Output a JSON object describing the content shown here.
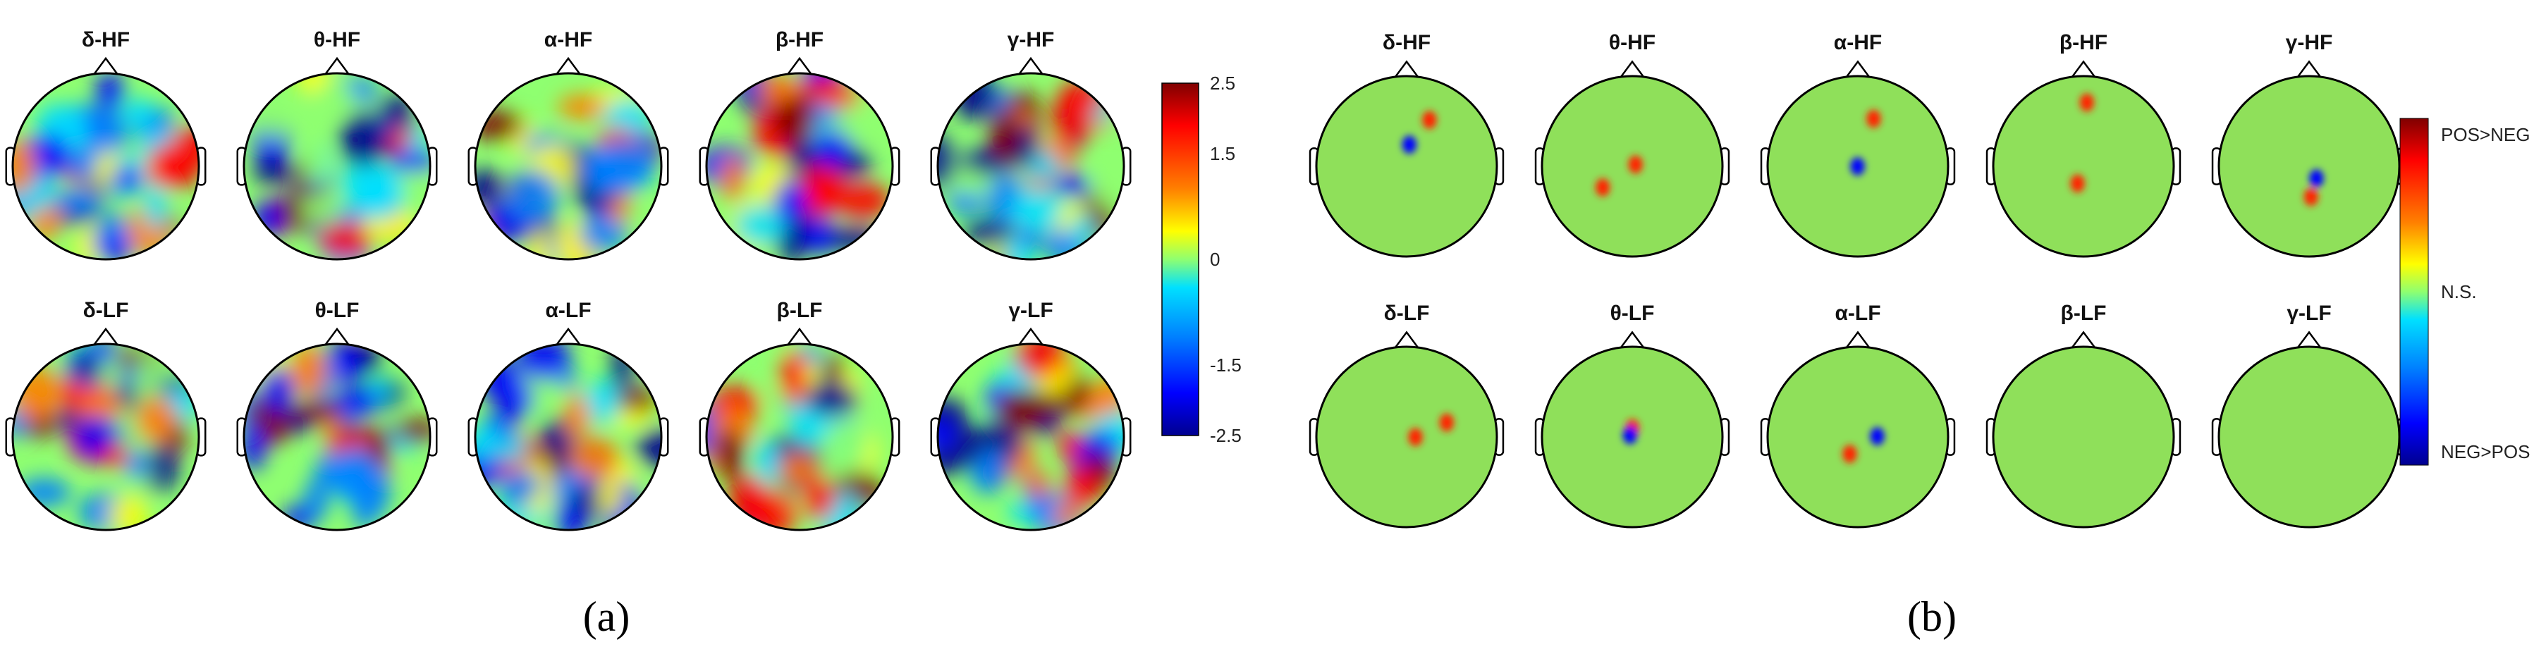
{
  "panel_a": {
    "caption": "(a)",
    "row1_titles": [
      "δ-HF",
      "θ-HF",
      "α-HF",
      "β-HF",
      "γ-HF"
    ],
    "row2_titles": [
      "δ-LF",
      "θ-LF",
      "α-LF",
      "β-LF",
      "γ-LF"
    ],
    "colorbar_ticks": [
      "2.5",
      "1.5",
      "0",
      "-1.5",
      "-2.5"
    ],
    "colorbar_values": [
      2.5,
      1.5,
      0,
      -1.5,
      -2.5
    ],
    "colorbar_range": [
      -2.5,
      2.5
    ]
  },
  "panel_b": {
    "caption": "(b)",
    "row1_titles": [
      "δ-HF",
      "θ-HF",
      "α-HF",
      "β-HF",
      "γ-HF"
    ],
    "row2_titles": [
      "δ-LF",
      "θ-LF",
      "α-LF",
      "β-LF",
      "γ-LF"
    ],
    "colorbar_labels": [
      "POS>NEG",
      "N.S.",
      "NEG>POS"
    ]
  },
  "colors": {
    "outline": "#000000",
    "ns_green": "#8fe05a",
    "scale": [
      "#00008f",
      "#0000ff",
      "#0080ff",
      "#00e0ff",
      "#8fff70",
      "#ffff00",
      "#ff8000",
      "#ff0000",
      "#800000"
    ]
  }
}
